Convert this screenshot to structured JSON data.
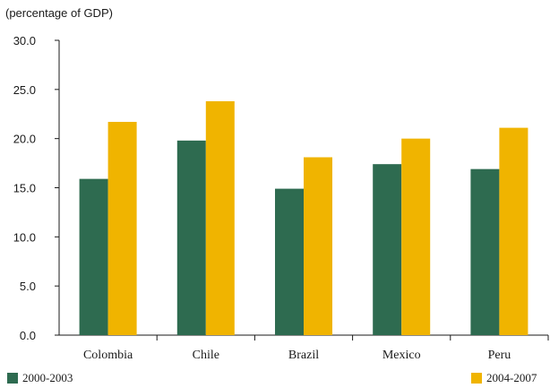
{
  "chart_data": {
    "type": "bar",
    "unit_label": "(percentage of GDP)",
    "categories": [
      "Colombia",
      "Chile",
      "Brazil",
      "Mexico",
      "Peru"
    ],
    "series": [
      {
        "name": "2000-2003",
        "color": "#2e6b50",
        "values": [
          15.9,
          19.8,
          14.9,
          17.4,
          16.9
        ]
      },
      {
        "name": "2004-2007",
        "color": "#f0b400",
        "values": [
          21.7,
          23.8,
          18.1,
          20.0,
          21.1
        ]
      }
    ],
    "ylim": [
      0,
      30
    ],
    "yticks": [
      "0.0",
      "5.0",
      "10.0",
      "15.0",
      "20.0",
      "25.0",
      "30.0"
    ],
    "legend_position": "bottom",
    "grid": false
  }
}
